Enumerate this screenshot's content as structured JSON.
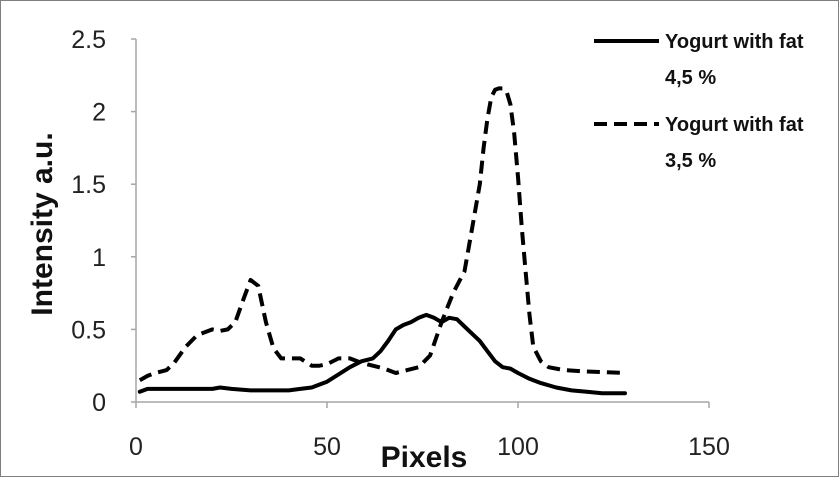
{
  "chart_data": {
    "type": "line",
    "title": "",
    "xlabel": "Pixels",
    "ylabel": "Intensity a.u.",
    "xlim": [
      0,
      150
    ],
    "ylim": [
      0,
      2.5
    ],
    "xticks": [
      "0",
      "50",
      "100",
      "150"
    ],
    "yticks": [
      "0",
      "0.5",
      "1",
      "1.5",
      "2",
      "2.5"
    ],
    "grid": false,
    "legend_position": "top-right",
    "series": [
      {
        "name_lines": [
          "Yogurt with fat",
          "4,5 %"
        ],
        "style": "solid",
        "color": "#000000",
        "x": [
          1,
          3,
          5,
          10,
          15,
          20,
          22,
          25,
          30,
          35,
          40,
          43,
          46,
          50,
          53,
          56,
          59,
          62,
          64,
          66,
          68,
          70,
          72,
          74,
          76,
          78,
          80,
          82,
          84,
          86,
          88,
          90,
          92,
          94,
          96,
          98,
          100,
          103,
          106,
          110,
          114,
          118,
          122,
          128
        ],
        "y": [
          0.07,
          0.09,
          0.09,
          0.09,
          0.09,
          0.09,
          0.1,
          0.09,
          0.08,
          0.08,
          0.08,
          0.09,
          0.1,
          0.14,
          0.19,
          0.24,
          0.28,
          0.3,
          0.35,
          0.42,
          0.5,
          0.53,
          0.55,
          0.58,
          0.6,
          0.58,
          0.55,
          0.58,
          0.57,
          0.52,
          0.47,
          0.42,
          0.35,
          0.28,
          0.24,
          0.23,
          0.2,
          0.16,
          0.13,
          0.1,
          0.08,
          0.07,
          0.06,
          0.06
        ]
      },
      {
        "name_lines": [
          "Yogurt with fat",
          "3,5 %"
        ],
        "style": "dashed",
        "color": "#000000",
        "x": [
          1,
          3,
          5,
          8,
          10,
          13,
          16,
          20,
          22,
          24,
          26,
          28,
          30,
          32,
          34,
          36,
          38,
          40,
          43,
          46,
          48,
          50,
          53,
          56,
          59,
          62,
          65,
          68,
          71,
          74,
          77,
          80,
          83,
          86,
          88,
          90,
          91,
          92,
          93,
          94,
          95,
          96,
          97,
          98,
          99,
          100,
          101,
          102,
          103,
          104,
          106,
          108,
          112,
          118,
          128
        ],
        "y": [
          0.15,
          0.18,
          0.2,
          0.22,
          0.27,
          0.38,
          0.46,
          0.5,
          0.49,
          0.5,
          0.55,
          0.7,
          0.84,
          0.8,
          0.55,
          0.37,
          0.3,
          0.3,
          0.3,
          0.25,
          0.25,
          0.26,
          0.3,
          0.3,
          0.27,
          0.25,
          0.23,
          0.2,
          0.22,
          0.24,
          0.32,
          0.55,
          0.75,
          0.9,
          1.2,
          1.5,
          1.75,
          1.95,
          2.1,
          2.15,
          2.16,
          2.16,
          2.14,
          2.05,
          1.85,
          1.55,
          1.2,
          0.9,
          0.6,
          0.38,
          0.28,
          0.24,
          0.22,
          0.21,
          0.2
        ]
      }
    ]
  }
}
